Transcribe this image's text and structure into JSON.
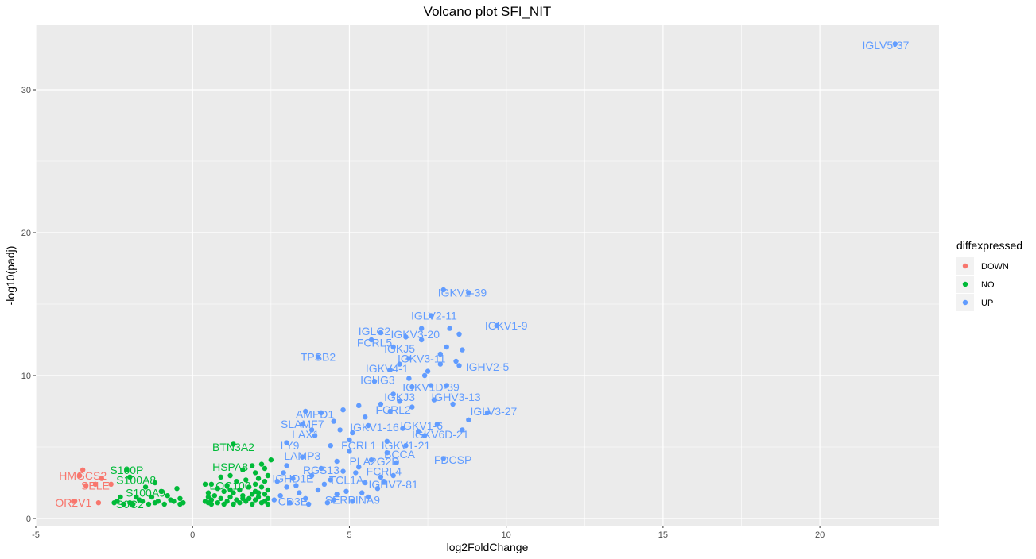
{
  "chart_data": {
    "type": "scatter",
    "title": "Volcano plot SFI_NIT",
    "xlabel": "log2FoldChange",
    "ylabel": "-log10(padj)",
    "xlim": [
      -5,
      23.8
    ],
    "ylim": [
      -0.5,
      34.5
    ],
    "x_ticks": [
      -5,
      0,
      5,
      10,
      15,
      20
    ],
    "y_ticks": [
      0,
      10,
      20,
      30
    ],
    "x_tick_labels": [
      "-5",
      "0",
      "5",
      "10",
      "15",
      "20"
    ],
    "y_tick_labels": [
      "0",
      "10",
      "20",
      "30"
    ],
    "grid": true,
    "legend_position": "right",
    "legend": {
      "title": "diffexpressed",
      "entries": [
        {
          "key": "DOWN",
          "label": "DOWN",
          "color": "#F8766D"
        },
        {
          "key": "NO",
          "label": "NO",
          "color": "#00BA38"
        },
        {
          "key": "UP",
          "label": "UP",
          "color": "#619CFF"
        }
      ]
    },
    "series": [
      {
        "name": "DOWN",
        "color": "#F8766D",
        "points": [
          [
            -3.5,
            3.4
          ],
          [
            -3.6,
            3.0
          ],
          [
            -3.1,
            2.4
          ],
          [
            -2.6,
            2.4
          ],
          [
            -3.4,
            2.3
          ],
          [
            -3.0,
            1.1
          ],
          [
            -3.8,
            1.2
          ],
          [
            -2.9,
            2.8
          ]
        ]
      },
      {
        "name": "NO",
        "color": "#00BA38",
        "points": [
          [
            1.3,
            5.2
          ],
          [
            2.5,
            4.1
          ],
          [
            2.2,
            3.8
          ],
          [
            1.9,
            3.7
          ],
          [
            2.3,
            3.5
          ],
          [
            1.6,
            3.4
          ],
          [
            2.0,
            3.2
          ],
          [
            2.4,
            3.0
          ],
          [
            1.2,
            3.0
          ],
          [
            0.9,
            2.9
          ],
          [
            2.1,
            2.8
          ],
          [
            1.7,
            2.7
          ],
          [
            2.3,
            2.6
          ],
          [
            1.4,
            2.6
          ],
          [
            2.0,
            2.4
          ],
          [
            0.6,
            2.4
          ],
          [
            0.4,
            2.4
          ],
          [
            1.1,
            2.3
          ],
          [
            2.2,
            2.2
          ],
          [
            1.8,
            2.2
          ],
          [
            0.8,
            2.1
          ],
          [
            2.4,
            2.0
          ],
          [
            1.5,
            2.0
          ],
          [
            1.0,
            1.9
          ],
          [
            2.0,
            1.9
          ],
          [
            0.5,
            1.8
          ],
          [
            1.3,
            1.8
          ],
          [
            1.9,
            1.7
          ],
          [
            2.3,
            1.7
          ],
          [
            0.7,
            1.6
          ],
          [
            1.6,
            1.6
          ],
          [
            2.1,
            1.5
          ],
          [
            0.5,
            1.5
          ],
          [
            1.2,
            1.5
          ],
          [
            1.8,
            1.4
          ],
          [
            2.4,
            1.4
          ],
          [
            0.9,
            1.4
          ],
          [
            0.6,
            1.3
          ],
          [
            1.4,
            1.3
          ],
          [
            2.0,
            1.3
          ],
          [
            1.1,
            1.2
          ],
          [
            1.7,
            1.2
          ],
          [
            2.3,
            1.2
          ],
          [
            0.4,
            1.2
          ],
          [
            0.8,
            1.1
          ],
          [
            1.5,
            1.1
          ],
          [
            2.2,
            1.1
          ],
          [
            1.0,
            1.0
          ],
          [
            1.9,
            1.0
          ],
          [
            0.6,
            1.0
          ],
          [
            1.3,
            1.0
          ],
          [
            2.4,
            1.0
          ],
          [
            0.5,
            1.1
          ],
          [
            1.6,
            1.4
          ],
          [
            2.1,
            1.8
          ],
          [
            1.2,
            2.0
          ],
          [
            -2.1,
            3.4
          ],
          [
            -2.0,
            2.9
          ],
          [
            -1.2,
            2.5
          ],
          [
            -1.5,
            2.2
          ],
          [
            -1.0,
            1.9
          ],
          [
            -0.5,
            2.1
          ],
          [
            -0.8,
            1.6
          ],
          [
            -1.3,
            1.5
          ],
          [
            -1.8,
            1.5
          ],
          [
            -2.3,
            1.5
          ],
          [
            -0.4,
            1.4
          ],
          [
            -0.7,
            1.3
          ],
          [
            -1.1,
            1.2
          ],
          [
            -1.6,
            1.2
          ],
          [
            -2.0,
            1.1
          ],
          [
            -2.5,
            1.1
          ],
          [
            -0.3,
            1.1
          ],
          [
            -0.9,
            1.0
          ],
          [
            -1.4,
            1.0
          ],
          [
            -1.9,
            1.0
          ],
          [
            -2.2,
            1.0
          ],
          [
            -0.6,
            1.2
          ],
          [
            -1.7,
            1.3
          ],
          [
            -2.4,
            1.2
          ],
          [
            -0.4,
            1.0
          ],
          [
            -1.2,
            1.1
          ]
        ]
      },
      {
        "name": "UP",
        "color": "#619CFF",
        "points": [
          [
            22.4,
            33.2
          ],
          [
            8.0,
            16.0
          ],
          [
            8.8,
            15.8
          ],
          [
            7.6,
            14.2
          ],
          [
            9.7,
            13.5
          ],
          [
            7.3,
            13.3
          ],
          [
            8.2,
            13.3
          ],
          [
            8.5,
            12.9
          ],
          [
            6.0,
            13.0
          ],
          [
            6.8,
            12.7
          ],
          [
            7.3,
            12.5
          ],
          [
            5.7,
            12.5
          ],
          [
            6.4,
            12.0
          ],
          [
            8.1,
            12.0
          ],
          [
            8.6,
            11.8
          ],
          [
            7.9,
            11.5
          ],
          [
            4.0,
            11.3
          ],
          [
            6.9,
            11.2
          ],
          [
            8.4,
            11.0
          ],
          [
            8.5,
            10.7
          ],
          [
            6.3,
            10.4
          ],
          [
            7.5,
            10.3
          ],
          [
            7.4,
            10.0
          ],
          [
            5.8,
            9.6
          ],
          [
            7.0,
            9.2
          ],
          [
            8.1,
            9.3
          ],
          [
            7.6,
            9.3
          ],
          [
            6.4,
            8.7
          ],
          [
            6.6,
            8.2
          ],
          [
            7.7,
            8.3
          ],
          [
            8.3,
            8.0
          ],
          [
            9.4,
            7.4
          ],
          [
            8.8,
            6.9
          ],
          [
            6.3,
            7.5
          ],
          [
            5.5,
            7.1
          ],
          [
            4.8,
            7.6
          ],
          [
            3.6,
            7.5
          ],
          [
            4.1,
            7.4
          ],
          [
            3.5,
            6.6
          ],
          [
            5.6,
            6.5
          ],
          [
            6.7,
            6.3
          ],
          [
            7.2,
            6.1
          ],
          [
            4.7,
            6.2
          ],
          [
            3.9,
            5.8
          ],
          [
            3.0,
            5.3
          ],
          [
            5.0,
            5.5
          ],
          [
            6.2,
            5.4
          ],
          [
            8.0,
            4.2
          ],
          [
            3.5,
            4.3
          ],
          [
            4.6,
            4.0
          ],
          [
            5.7,
            4.1
          ],
          [
            6.5,
            3.9
          ],
          [
            3.0,
            3.7
          ],
          [
            4.1,
            3.5
          ],
          [
            5.2,
            3.2
          ],
          [
            3.2,
            2.8
          ],
          [
            4.4,
            2.7
          ],
          [
            5.5,
            2.5
          ],
          [
            6.1,
            2.6
          ],
          [
            3.0,
            2.2
          ],
          [
            4.0,
            2.0
          ],
          [
            4.9,
            1.9
          ],
          [
            5.6,
            1.5
          ],
          [
            3.6,
            1.4
          ],
          [
            4.5,
            1.3
          ],
          [
            2.8,
            1.6
          ],
          [
            3.4,
            1.8
          ],
          [
            2.7,
            2.6
          ],
          [
            4.8,
            3.3
          ],
          [
            5.3,
            3.6
          ],
          [
            3.8,
            3.0
          ],
          [
            4.2,
            2.4
          ],
          [
            5.9,
            2.1
          ],
          [
            6.4,
            3.0
          ],
          [
            3.3,
            2.3
          ],
          [
            2.9,
            3.2
          ],
          [
            4.6,
            1.7
          ],
          [
            5.1,
            1.2
          ],
          [
            3.1,
            1.1
          ],
          [
            2.6,
            1.3
          ],
          [
            3.7,
            1.0
          ],
          [
            4.3,
            1.1
          ],
          [
            5.4,
            1.8
          ],
          [
            6.0,
            2.9
          ],
          [
            7.4,
            5.8
          ],
          [
            7.8,
            6.6
          ],
          [
            8.6,
            6.2
          ],
          [
            7.0,
            7.8
          ],
          [
            6.0,
            8.0
          ],
          [
            5.3,
            7.9
          ],
          [
            6.8,
            5.1
          ],
          [
            6.2,
            4.6
          ],
          [
            5.0,
            4.7
          ],
          [
            4.4,
            5.1
          ],
          [
            3.8,
            6.2
          ],
          [
            4.5,
            6.8
          ],
          [
            6.9,
            9.8
          ],
          [
            6.6,
            10.8
          ],
          [
            7.9,
            10.8
          ],
          [
            5.1,
            6.0
          ]
        ]
      }
    ],
    "point_labels": [
      {
        "text": "IGLV5-37",
        "x": 22.1,
        "y": 33.1,
        "series": "UP"
      },
      {
        "text": "IGKV1-39",
        "x": 8.6,
        "y": 15.8,
        "series": "UP"
      },
      {
        "text": "IGLV2-11",
        "x": 7.7,
        "y": 14.2,
        "series": "UP"
      },
      {
        "text": "IGKV1-9",
        "x": 10.0,
        "y": 13.5,
        "series": "UP"
      },
      {
        "text": "IGLC2",
        "x": 5.8,
        "y": 13.1,
        "series": "UP"
      },
      {
        "text": "IGKV3-20",
        "x": 7.1,
        "y": 12.9,
        "series": "UP"
      },
      {
        "text": "FCRL5",
        "x": 5.8,
        "y": 12.3,
        "series": "UP"
      },
      {
        "text": "IGKJ5",
        "x": 6.6,
        "y": 11.9,
        "series": "UP"
      },
      {
        "text": "TPSB2",
        "x": 4.0,
        "y": 11.3,
        "series": "UP"
      },
      {
        "text": "IGKV3-11",
        "x": 7.3,
        "y": 11.2,
        "series": "UP"
      },
      {
        "text": "IGHV2-5",
        "x": 9.4,
        "y": 10.6,
        "series": "UP"
      },
      {
        "text": "IGKV4-1",
        "x": 6.2,
        "y": 10.5,
        "series": "UP"
      },
      {
        "text": "IGHG3",
        "x": 5.9,
        "y": 9.7,
        "series": "UP"
      },
      {
        "text": "IGKV1D-39",
        "x": 7.6,
        "y": 9.2,
        "series": "UP"
      },
      {
        "text": "IGKJ3",
        "x": 6.6,
        "y": 8.5,
        "series": "UP"
      },
      {
        "text": "IGHV3-13",
        "x": 8.4,
        "y": 8.5,
        "series": "UP"
      },
      {
        "text": "FCRL2",
        "x": 6.4,
        "y": 7.6,
        "series": "UP"
      },
      {
        "text": "IGLV3-27",
        "x": 9.6,
        "y": 7.5,
        "series": "UP"
      },
      {
        "text": "AMPD1",
        "x": 3.9,
        "y": 7.3,
        "series": "UP"
      },
      {
        "text": "SLAMF7",
        "x": 3.5,
        "y": 6.6,
        "series": "UP"
      },
      {
        "text": "IGKV1-16",
        "x": 5.8,
        "y": 6.4,
        "series": "UP"
      },
      {
        "text": "IGKV1-6",
        "x": 7.3,
        "y": 6.5,
        "series": "UP"
      },
      {
        "text": "LAX1",
        "x": 3.6,
        "y": 5.9,
        "series": "UP"
      },
      {
        "text": "IGKV6D-21",
        "x": 7.9,
        "y": 5.9,
        "series": "UP"
      },
      {
        "text": "LY9",
        "x": 3.1,
        "y": 5.1,
        "series": "UP"
      },
      {
        "text": "FCRL1",
        "x": 5.3,
        "y": 5.1,
        "series": "UP"
      },
      {
        "text": "IGKV1-21",
        "x": 6.8,
        "y": 5.1,
        "series": "UP"
      },
      {
        "text": "LAMP3",
        "x": 3.5,
        "y": 4.4,
        "series": "UP"
      },
      {
        "text": "BCCA",
        "x": 6.6,
        "y": 4.5,
        "series": "UP"
      },
      {
        "text": "FDCSP",
        "x": 8.3,
        "y": 4.1,
        "series": "UP"
      },
      {
        "text": "PLA2G2D",
        "x": 5.8,
        "y": 4.0,
        "series": "UP"
      },
      {
        "text": "RGS13",
        "x": 4.1,
        "y": 3.4,
        "series": "UP"
      },
      {
        "text": "FCRL4",
        "x": 6.1,
        "y": 3.3,
        "series": "UP"
      },
      {
        "text": "IGHD1E",
        "x": 3.2,
        "y": 2.8,
        "series": "UP"
      },
      {
        "text": "TCL1A",
        "x": 4.9,
        "y": 2.7,
        "series": "UP"
      },
      {
        "text": "IGHV7-81",
        "x": 6.4,
        "y": 2.4,
        "series": "UP"
      },
      {
        "text": "SERPINA9",
        "x": 5.1,
        "y": 1.3,
        "series": "UP"
      },
      {
        "text": "CD3E",
        "x": 3.2,
        "y": 1.2,
        "series": "UP"
      },
      {
        "text": "BTN3A2",
        "x": 1.3,
        "y": 5.0,
        "series": "NO"
      },
      {
        "text": "HSPA8",
        "x": 1.2,
        "y": 3.6,
        "series": "NO"
      },
      {
        "text": "S100P",
        "x": -2.1,
        "y": 3.4,
        "series": "NO"
      },
      {
        "text": "S100A8",
        "x": -1.8,
        "y": 2.7,
        "series": "NO"
      },
      {
        "text": "S100A9",
        "x": -1.5,
        "y": 1.8,
        "series": "NO"
      },
      {
        "text": "S0C2",
        "x": -2.0,
        "y": 1.0,
        "series": "NO"
      },
      {
        "text": "LOC100",
        "x": 1.2,
        "y": 2.3,
        "series": "NO"
      },
      {
        "text": "HMGCS2",
        "x": -3.5,
        "y": 3.0,
        "series": "DOWN"
      },
      {
        "text": "SELE",
        "x": -3.1,
        "y": 2.3,
        "series": "DOWN"
      },
      {
        "text": "OR2V1",
        "x": -3.8,
        "y": 1.1,
        "series": "DOWN"
      }
    ]
  }
}
